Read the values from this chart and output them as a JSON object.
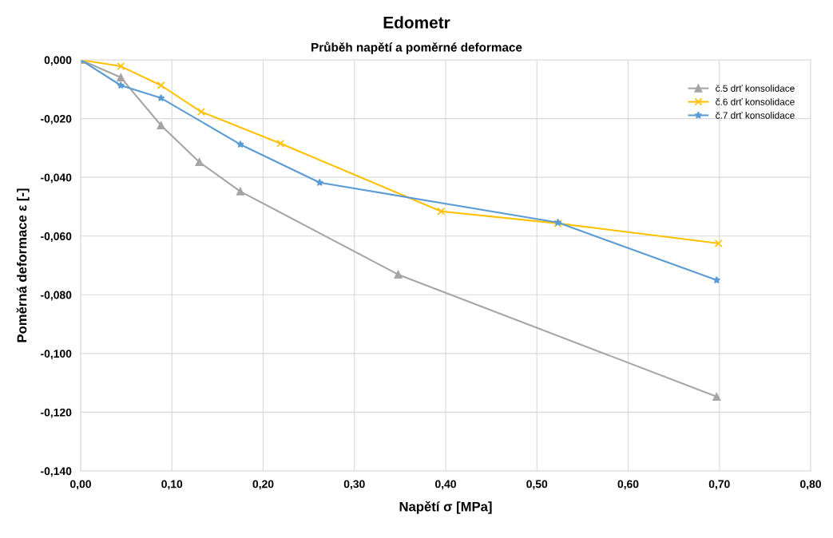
{
  "chart_data": {
    "type": "line",
    "title": "Edometr",
    "subtitle": "Průběh napětí a poměrné deformace",
    "xlabel": "Napětí σ [MPa]",
    "ylabel": "Poměrná deformace ε [-]",
    "series": [
      {
        "name": "č.5 drť konsolidace",
        "color": "#a5a5a5",
        "marker": "triangle",
        "x": [
          0,
          0.044,
          0.088,
          0.13,
          0.175,
          0.348,
          0.697
        ],
        "values": [
          0,
          -0.006,
          -0.0223,
          -0.0348,
          -0.0448,
          -0.0731,
          -0.1147
        ]
      },
      {
        "name": "č.6 drť konsolidace",
        "color": "#ffc000",
        "marker": "cross",
        "x": [
          0,
          0.044,
          0.088,
          0.132,
          0.219,
          0.395,
          0.523,
          0.699
        ],
        "values": [
          0,
          -0.0022,
          -0.0087,
          -0.0177,
          -0.0285,
          -0.0516,
          -0.0557,
          -0.0625
        ]
      },
      {
        "name": "č.7 drť konsolidace",
        "color": "#5b9bd5",
        "marker": "star",
        "x": [
          0,
          0.044,
          0.088,
          0.175,
          0.262,
          0.523,
          0.697
        ],
        "values": [
          0,
          -0.0087,
          -0.013,
          -0.0288,
          -0.0418,
          -0.0554,
          -0.075
        ]
      }
    ],
    "xlim": [
      0,
      0.8
    ],
    "ylim": [
      -0.14,
      0
    ],
    "xticks": [
      {
        "value": 0,
        "label": "0,00"
      },
      {
        "value": 0.1,
        "label": "0,10"
      },
      {
        "value": 0.2,
        "label": "0,20"
      },
      {
        "value": 0.3,
        "label": "0,30"
      },
      {
        "value": 0.4,
        "label": "0,40"
      },
      {
        "value": 0.5,
        "label": "0,50"
      },
      {
        "value": 0.6,
        "label": "0,60"
      },
      {
        "value": 0.7,
        "label": "0,70"
      },
      {
        "value": 0.8,
        "label": "0,80"
      }
    ],
    "yticks": [
      {
        "value": 0,
        "label": "0,000"
      },
      {
        "value": -0.02,
        "label": "-0,020"
      },
      {
        "value": -0.04,
        "label": "-0,040"
      },
      {
        "value": -0.06,
        "label": "-0,060"
      },
      {
        "value": -0.08,
        "label": "-0,080"
      },
      {
        "value": -0.1,
        "label": "-0,100"
      },
      {
        "value": -0.12,
        "label": "-0,120"
      },
      {
        "value": -0.14,
        "label": "-0,140"
      }
    ],
    "grid": true,
    "legend": "top right",
    "line_style": "solid"
  }
}
